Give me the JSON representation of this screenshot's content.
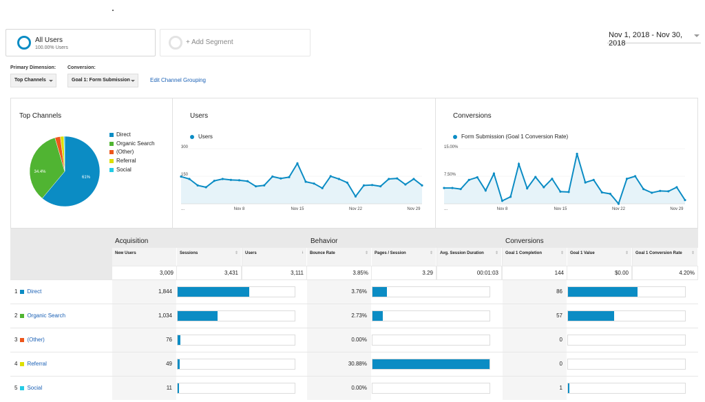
{
  "segments": {
    "all_users": {
      "name": "All Users",
      "sub": "100.00% Users"
    },
    "add_segment": "+ Add Segment"
  },
  "date_range": "Nov 1, 2018 - Nov 30, 2018",
  "controls": {
    "primary_dimension_label": "Primary Dimension:",
    "primary_dimension_value": "Top Channels",
    "conversion_label": "Conversion:",
    "conversion_value": "Goal 1: Form Submission",
    "edit_link": "Edit Channel Grouping"
  },
  "colors": {
    "direct": "#0b8cc4",
    "organic": "#50b432",
    "other": "#ed561b",
    "referral": "#dddf00",
    "social": "#24cbe5",
    "line": "#0b8cc4"
  },
  "pie_panel": {
    "title": "Top Channels",
    "legend": [
      "Direct",
      "Organic Search",
      "(Other)",
      "Referral",
      "Social"
    ],
    "slice_labels": {
      "direct": "61%",
      "organic": "34.4%"
    }
  },
  "users_panel": {
    "title": "Users",
    "legend": "Users",
    "y_ticks": [
      "300",
      "150"
    ],
    "x_ticks": [
      "...",
      "Nov 8",
      "Nov 15",
      "Nov 22",
      "Nov 29"
    ]
  },
  "conversions_panel": {
    "title": "Conversions",
    "legend": "Form Submission (Goal 1 Conversion Rate)",
    "y_ticks": [
      "15.00%",
      "7.50%"
    ],
    "x_ticks": [
      "...",
      "Nov 8",
      "Nov 15",
      "Nov 22",
      "Nov 29"
    ]
  },
  "chart_data": [
    {
      "type": "pie",
      "title": "Top Channels",
      "categories": [
        "Direct",
        "Organic Search",
        "(Other)",
        "Referral",
        "Social"
      ],
      "values": [
        61.0,
        34.4,
        2.5,
        1.6,
        0.4
      ]
    },
    {
      "type": "area",
      "title": "Users",
      "x": [
        "Nov 1",
        "Nov 2",
        "Nov 3",
        "Nov 4",
        "Nov 5",
        "Nov 6",
        "Nov 7",
        "Nov 8",
        "Nov 9",
        "Nov 10",
        "Nov 11",
        "Nov 12",
        "Nov 13",
        "Nov 14",
        "Nov 15",
        "Nov 16",
        "Nov 17",
        "Nov 18",
        "Nov 19",
        "Nov 20",
        "Nov 21",
        "Nov 22",
        "Nov 23",
        "Nov 24",
        "Nov 25",
        "Nov 26",
        "Nov 27",
        "Nov 28",
        "Nov 29",
        "Nov 30"
      ],
      "series": [
        {
          "name": "Users",
          "values": [
            148,
            135,
            100,
            90,
            125,
            135,
            130,
            128,
            123,
            95,
            100,
            148,
            138,
            145,
            220,
            120,
            110,
            85,
            150,
            135,
            115,
            40,
            100,
            102,
            95,
            135,
            138,
            105,
            135,
            100
          ]
        }
      ],
      "ylim": [
        0,
        300
      ]
    },
    {
      "type": "area",
      "title": "Conversions",
      "x": [
        "Nov 1",
        "Nov 2",
        "Nov 3",
        "Nov 4",
        "Nov 5",
        "Nov 6",
        "Nov 7",
        "Nov 8",
        "Nov 9",
        "Nov 10",
        "Nov 11",
        "Nov 12",
        "Nov 13",
        "Nov 14",
        "Nov 15",
        "Nov 16",
        "Nov 17",
        "Nov 18",
        "Nov 19",
        "Nov 20",
        "Nov 21",
        "Nov 22",
        "Nov 23",
        "Nov 24",
        "Nov 25",
        "Nov 26",
        "Nov 27",
        "Nov 28",
        "Nov 29",
        "Nov 30"
      ],
      "series": [
        {
          "name": "Form Submission (Goal 1 Conversion Rate)",
          "values": [
            4.3,
            4.3,
            4.0,
            6.5,
            7.2,
            3.6,
            8.2,
            0.8,
            1.9,
            10.8,
            4.2,
            7.3,
            4.5,
            6.8,
            3.3,
            3.2,
            13.6,
            5.8,
            6.5,
            3.1,
            2.7,
            0.0,
            6.8,
            7.5,
            4.0,
            3.0,
            3.5,
            3.4,
            4.5,
            1.0
          ]
        }
      ],
      "ylim": [
        0,
        15
      ]
    }
  ],
  "table": {
    "groups": [
      "Acquisition",
      "Behavior",
      "Conversions"
    ],
    "columns": [
      "New Users",
      "Sessions",
      "Users",
      "Bounce Rate",
      "Pages / Session",
      "Avg. Session Duration",
      "Goal 1 Completion",
      "Goal 1 Value",
      "Goal 1 Conversion Rate"
    ],
    "totals": [
      "3,009",
      "3,431",
      "3,111",
      "3.85%",
      "3.29",
      "00:01:03",
      "144",
      "$0.00",
      "4.20%"
    ],
    "rows": [
      {
        "num": "1",
        "label": "Direct",
        "new_users": "1,844",
        "sessions_pct": 0.61,
        "bounce_rate": "3.76%",
        "pages_pct": 0.122,
        "goal_completions": "86",
        "goal_value_pct": 0.597
      },
      {
        "num": "2",
        "label": "Organic Search",
        "new_users": "1,034",
        "sessions_pct": 0.344,
        "bounce_rate": "2.73%",
        "pages_pct": 0.088,
        "goal_completions": "57",
        "goal_value_pct": 0.396
      },
      {
        "num": "3",
        "label": "(Other)",
        "new_users": "76",
        "sessions_pct": 0.025,
        "bounce_rate": "0.00%",
        "pages_pct": 0,
        "goal_completions": "0",
        "goal_value_pct": 0
      },
      {
        "num": "4",
        "label": "Referral",
        "new_users": "49",
        "sessions_pct": 0.016,
        "bounce_rate": "30.88%",
        "pages_pct": 1.0,
        "goal_completions": "0",
        "goal_value_pct": 0
      },
      {
        "num": "5",
        "label": "Social",
        "new_users": "11",
        "sessions_pct": 0.004,
        "bounce_rate": "0.00%",
        "pages_pct": 0,
        "goal_completions": "1",
        "goal_value_pct": 0.007
      }
    ]
  }
}
